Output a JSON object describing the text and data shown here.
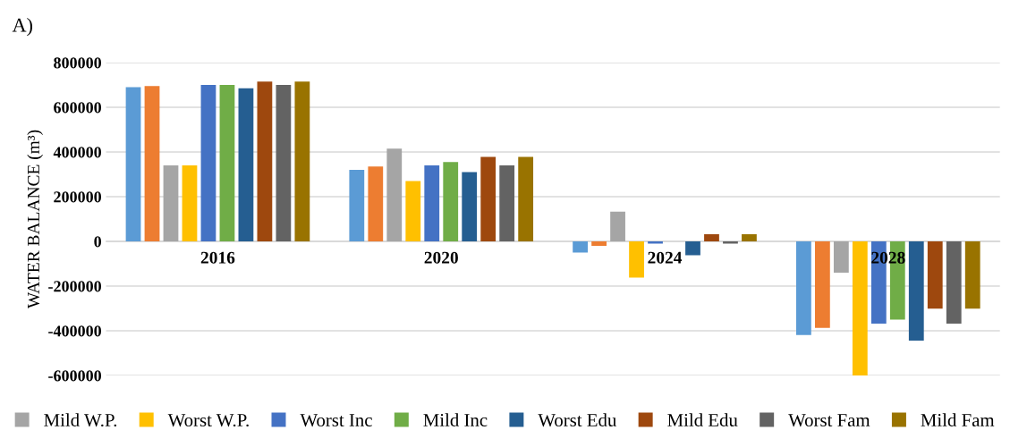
{
  "chart_data": {
    "type": "bar",
    "title": "A)",
    "ylabel": "WATER BALANCE (m³)",
    "categories": [
      "2016",
      "2020",
      "2024",
      "2028"
    ],
    "series": [
      {
        "color": "#5b9bd5",
        "values": [
          690000,
          320000,
          -50000,
          -419000
        ]
      },
      {
        "color": "#ed7d31",
        "values": [
          695000,
          335000,
          -20000,
          -387000
        ]
      },
      {
        "name": "Mild W.P.",
        "color": "#a5a5a5",
        "values": [
          340000,
          415000,
          133000,
          -140000
        ]
      },
      {
        "name": "Worst W.P.",
        "color": "#ffc000",
        "values": [
          340000,
          270000,
          -162000,
          -600000
        ]
      },
      {
        "name": "Worst Inc",
        "color": "#4472c4",
        "values": [
          700000,
          340000,
          -10000,
          -368000
        ]
      },
      {
        "name": "Mild Inc",
        "color": "#70ad47",
        "values": [
          700000,
          355000,
          null,
          -350000
        ]
      },
      {
        "name": "Worst Edu",
        "color": "#255e91",
        "values": [
          685000,
          310000,
          -62000,
          -444000
        ]
      },
      {
        "name": "Mild Edu",
        "color": "#9e480e",
        "values": [
          715000,
          378000,
          32000,
          -301000
        ]
      },
      {
        "name": "Worst Fam",
        "color": "#636363",
        "values": [
          700000,
          340000,
          -10000,
          -368000
        ]
      },
      {
        "name": "Mild Fam",
        "color": "#997300",
        "values": [
          715000,
          378000,
          32000,
          -301000
        ]
      }
    ],
    "ylim": [
      -600000,
      800000
    ],
    "yticks": [
      -600000,
      -400000,
      -200000,
      0,
      200000,
      400000,
      600000,
      800000
    ],
    "grid": "y",
    "legend": "bottom"
  }
}
